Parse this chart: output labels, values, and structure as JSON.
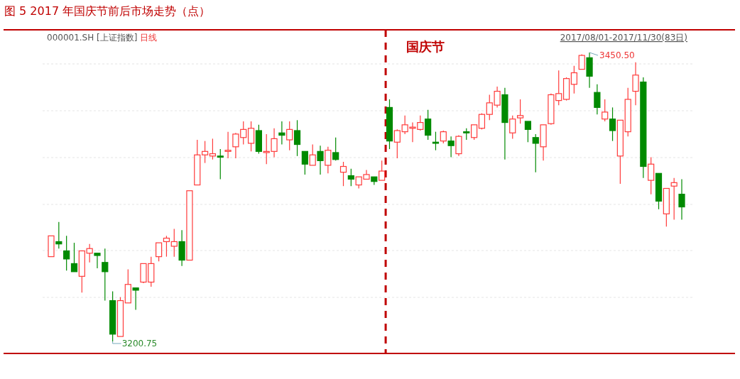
{
  "chart_data": {
    "type": "candlestick",
    "title": "图 5 2017 年国庆节前后市场走势（点）",
    "categories": [
      null,
      null,
      null,
      null,
      null,
      null,
      null,
      null,
      null,
      null,
      null,
      null,
      null,
      null,
      null,
      null,
      null,
      null,
      null,
      null,
      null,
      null,
      null,
      null,
      null,
      null,
      null,
      null,
      null,
      null,
      null,
      null,
      null,
      null,
      null,
      null,
      null,
      null,
      null,
      null,
      null,
      null,
      null,
      null,
      null,
      null,
      null,
      null,
      null,
      null,
      null,
      null,
      null,
      null,
      null,
      null,
      null,
      null,
      null,
      null,
      null,
      null,
      null,
      null,
      null,
      null,
      null,
      null,
      null,
      null,
      null,
      null,
      null,
      null,
      null,
      null,
      null,
      null,
      null,
      null,
      null,
      null,
      null
    ],
    "ohlc": [
      [
        3274,
        3292,
        3274,
        3292
      ],
      [
        3287,
        3304,
        3281,
        3285
      ],
      [
        3279,
        3292,
        3262,
        3272
      ],
      [
        3268,
        3286,
        3261,
        3261
      ],
      [
        3257,
        3279,
        3243,
        3279
      ],
      [
        3277,
        3285,
        3269,
        3281
      ],
      [
        3277,
        3277,
        3264,
        3275
      ],
      [
        3269,
        3281,
        3236,
        3261
      ],
      [
        3236,
        3244,
        3200.75,
        3207
      ],
      [
        3205,
        3239,
        3205,
        3236
      ],
      [
        3234,
        3263,
        3234,
        3250
      ],
      [
        3247,
        3247,
        3228,
        3245
      ],
      [
        3252,
        3268,
        3251,
        3268
      ],
      [
        3252,
        3274,
        3248,
        3268
      ],
      [
        3274,
        3286,
        3270,
        3286
      ],
      [
        3287,
        3292,
        3274,
        3290
      ],
      [
        3283,
        3298,
        3274,
        3287
      ],
      [
        3287,
        3297,
        3266,
        3271
      ],
      [
        3271,
        3331,
        3271,
        3331
      ],
      [
        3336,
        3375,
        3336,
        3362
      ],
      [
        3362,
        3374,
        3355,
        3365
      ],
      [
        3361,
        3376,
        3358,
        3363
      ],
      [
        3361,
        3367,
        3341,
        3360
      ],
      [
        3365,
        3382,
        3359,
        3366
      ],
      [
        3369,
        3381,
        3359,
        3380
      ],
      [
        3377,
        3391,
        3371,
        3384
      ],
      [
        3372,
        3391,
        3365,
        3385
      ],
      [
        3383,
        3388,
        3363,
        3365
      ],
      [
        3364,
        3380,
        3354,
        3365
      ],
      [
        3365,
        3385,
        3360,
        3376
      ],
      [
        3381,
        3391,
        3371,
        3379
      ],
      [
        3375,
        3391,
        3366,
        3384
      ],
      [
        3383,
        3392,
        3361,
        3371
      ],
      [
        3365,
        3365,
        3345,
        3354
      ],
      [
        3353,
        3371,
        3353,
        3362
      ],
      [
        3365,
        3370,
        3345,
        3357
      ],
      [
        3353,
        3369,
        3346,
        3366
      ],
      [
        3364,
        3377,
        3357,
        3358
      ],
      [
        3347,
        3356,
        3335,
        3352
      ],
      [
        3344,
        3350,
        3335,
        3341
      ],
      [
        3336,
        3343,
        3333,
        3343
      ],
      [
        3341,
        3349,
        3341,
        3345
      ],
      [
        3343,
        3343,
        3336,
        3339
      ],
      [
        3340,
        3357,
        3340,
        3348
      ],
      [
        3403,
        3410,
        3367,
        3374
      ],
      [
        3373,
        3384,
        3359,
        3383
      ],
      [
        3382,
        3396,
        3380,
        3388
      ],
      [
        3385,
        3390,
        3373,
        3386
      ],
      [
        3384,
        3396,
        3383,
        3390
      ],
      [
        3393,
        3401,
        3375,
        3379
      ],
      [
        3373,
        3382,
        3366,
        3372
      ],
      [
        3374,
        3383,
        3372,
        3382
      ],
      [
        3374,
        3378,
        3360,
        3370
      ],
      [
        3363,
        3379,
        3361,
        3378
      ],
      [
        3382,
        3385,
        3375,
        3381
      ],
      [
        3377,
        3388,
        3375,
        3388
      ],
      [
        3385,
        3398,
        3384,
        3397
      ],
      [
        3397,
        3414,
        3392,
        3407
      ],
      [
        3405,
        3421,
        3403,
        3417
      ],
      [
        3414,
        3420,
        3358,
        3390
      ],
      [
        3381,
        3396,
        3376,
        3393
      ],
      [
        3394,
        3410,
        3389,
        3396
      ],
      [
        3391,
        3391,
        3373,
        3384
      ],
      [
        3377,
        3380,
        3347,
        3372
      ],
      [
        3369,
        3388,
        3357,
        3388
      ],
      [
        3389,
        3415,
        3388,
        3414
      ],
      [
        3409,
        3435,
        3405,
        3415
      ],
      [
        3410,
        3429,
        3409,
        3428
      ],
      [
        3423,
        3439,
        3415,
        3433
      ],
      [
        3436,
        3449,
        3436,
        3448
      ],
      [
        3446,
        3450.5,
        3420,
        3430
      ],
      [
        3416,
        3423,
        3397,
        3403
      ],
      [
        3393,
        3410,
        3391,
        3399
      ],
      [
        3393,
        3403,
        3374,
        3383
      ],
      [
        3361,
        3392,
        3337,
        3392
      ],
      [
        3382,
        3420,
        3378,
        3410
      ],
      [
        3417,
        3442,
        3405,
        3431
      ],
      [
        3425,
        3429,
        3342,
        3352
      ],
      [
        3340,
        3360,
        3328,
        3354
      ],
      [
        3346,
        3346,
        3315,
        3322
      ],
      [
        3311,
        3333,
        3300,
        3333
      ],
      [
        3335,
        3342,
        3306,
        3338
      ],
      [
        3328,
        3341,
        3306,
        3317
      ]
    ],
    "annotations": [
      "000001.SH [上证指数]",
      "日线",
      "2017/08/01-2017/11/30(83日)",
      "国庆节",
      "3450.50",
      "3200.75"
    ],
    "grid": "y"
  }
}
